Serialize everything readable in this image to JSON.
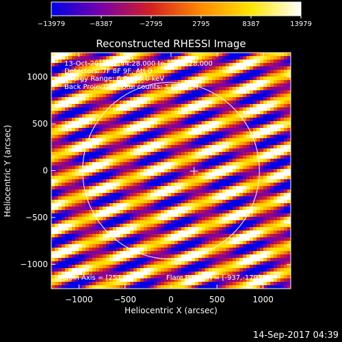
{
  "chart_data": {
    "type": "heatmap",
    "title": "Reconstructed RHESSI Image",
    "xlabel": "Heliocentric X (arcsec)",
    "ylabel": "Heliocentric Y (arcsec)",
    "xlim": [
      -1300,
      1300
    ],
    "ylim": [
      -1260,
      1260
    ],
    "xticks": [
      -1000,
      -500,
      0,
      500,
      1000
    ],
    "yticks": [
      -1000,
      -500,
      0,
      500,
      1000
    ],
    "colorbar": {
      "min": -13979,
      "max": 13979,
      "ticks": [
        -13979,
        -8387,
        -2795,
        2795,
        8387,
        13979
      ],
      "colormap": "blue-to-red-yellow-white"
    },
    "annotations": [
      "13-Oct-2015 22:44:28.000 to 22:54:28.000",
      "Detectors: 7F 8F 9F, Att 0",
      "Energy Range: 6.0 - 25.0 keV",
      "Back Projection    Total counts: 1.68E+04"
    ],
    "spin_axis_text": "Spin Axis = [251,-5]",
    "flare_position_text": "Flare Position = [-937,-179]",
    "solar_disk": {
      "center": [
        0,
        0
      ],
      "radius": 960
    },
    "spin_axis": [
      251,
      -5
    ],
    "footer_timestamp": "14-Sep-2017 04:39"
  },
  "colors": {
    "background": "#000000",
    "foreground": "#ffffff",
    "colormap_stops": [
      "#0000e6",
      "#7a00a8",
      "#d42020",
      "#ff8a00",
      "#ffe600",
      "#ffffff"
    ]
  }
}
